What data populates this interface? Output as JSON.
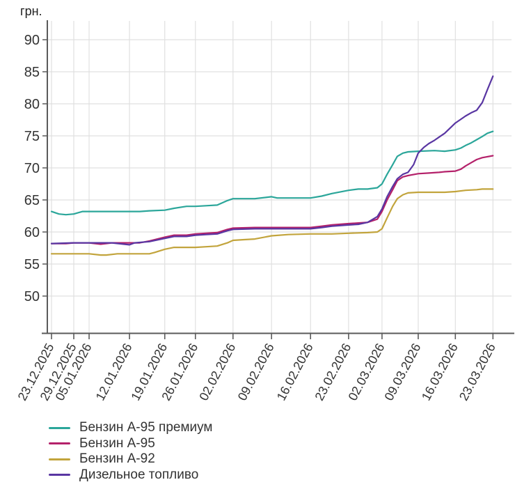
{
  "chart_data": {
    "type": "line",
    "unit_label": "грн.",
    "colors": {
      "grid": "#E0E0E0",
      "axis": "#5A5A5A",
      "tick_text": "#333333"
    },
    "y_axis": {
      "min": 50,
      "max": 90,
      "ticks": [
        90,
        85,
        80,
        75,
        70,
        65,
        60,
        55,
        50
      ],
      "grid": true
    },
    "x_axis": {
      "grid": true,
      "ticks": [
        {
          "label": "23.12.2025",
          "t": 0.009
        },
        {
          "label": "29.12.2025",
          "t": 0.057
        },
        {
          "label": "05.01.2026",
          "t": 0.09
        },
        {
          "label": "12.01.2026",
          "t": 0.177
        },
        {
          "label": "19.01.2026",
          "t": 0.253
        },
        {
          "label": "26.01.2026",
          "t": 0.319
        },
        {
          "label": "02.02.2026",
          "t": 0.4
        },
        {
          "label": "09.02.2026",
          "t": 0.483
        },
        {
          "label": "16.02.2026",
          "t": 0.567
        },
        {
          "label": "23.02.2026",
          "t": 0.649
        },
        {
          "label": "02.03.2026",
          "t": 0.721
        },
        {
          "label": "09.03.2026",
          "t": 0.799
        },
        {
          "label": "16.03.2026",
          "t": 0.879
        },
        {
          "label": "23.03.2026",
          "t": 0.96
        }
      ]
    },
    "legend": {
      "position": "bottom-left"
    },
    "series": [
      {
        "id": "a95-premium",
        "name": "Бензин А-95 премиум",
        "color": "#2BA69A",
        "points": [
          [
            "23.12.2025",
            0.009,
            63.2
          ],
          [
            "25.12.2025",
            0.025,
            62.8
          ],
          [
            "27.12.2025",
            0.04,
            62.7
          ],
          [
            "29.12.2025",
            0.057,
            62.8
          ],
          [
            "31.12.2025",
            0.066,
            63.0
          ],
          [
            "02.01.2026",
            0.076,
            63.2
          ],
          [
            "05.01.2026",
            0.09,
            63.2
          ],
          [
            "09.01.2026",
            0.139,
            63.2
          ],
          [
            "12.01.2026",
            0.177,
            63.2
          ],
          [
            "14.01.2026",
            0.199,
            63.2
          ],
          [
            "16.01.2026",
            0.22,
            63.3
          ],
          [
            "19.01.2026",
            0.253,
            63.4
          ],
          [
            "21.01.2026",
            0.273,
            63.7
          ],
          [
            "24.01.2026",
            0.3,
            64.0
          ],
          [
            "26.01.2026",
            0.319,
            64.0
          ],
          [
            "28.01.2026",
            0.342,
            64.1
          ],
          [
            "30.01.2026",
            0.366,
            64.2
          ],
          [
            "01.02.2026",
            0.388,
            64.9
          ],
          [
            "02.02.2026",
            0.4,
            65.2
          ],
          [
            "06.02.2026",
            0.447,
            65.2
          ],
          [
            "09.02.2026",
            0.483,
            65.5
          ],
          [
            "10.02.2026",
            0.495,
            65.3
          ],
          [
            "16.02.2026",
            0.567,
            65.3
          ],
          [
            "18.02.2026",
            0.591,
            65.6
          ],
          [
            "20.02.2026",
            0.613,
            66.0
          ],
          [
            "23.02.2026",
            0.649,
            66.5
          ],
          [
            "25.02.2026",
            0.67,
            66.7
          ],
          [
            "27.02.2026",
            0.69,
            66.7
          ],
          [
            "01.03.2026",
            0.711,
            66.9
          ],
          [
            "02.03.2026",
            0.721,
            67.5
          ],
          [
            "03.03.2026",
            0.732,
            69.0
          ],
          [
            "04.03.2026",
            0.744,
            70.5
          ],
          [
            "05.03.2026",
            0.754,
            71.8
          ],
          [
            "06.03.2026",
            0.766,
            72.3
          ],
          [
            "07.03.2026",
            0.777,
            72.5
          ],
          [
            "09.03.2026",
            0.799,
            72.6
          ],
          [
            "12.03.2026",
            0.834,
            72.7
          ],
          [
            "14.03.2026",
            0.856,
            72.6
          ],
          [
            "16.03.2026",
            0.879,
            72.8
          ],
          [
            "17.03.2026",
            0.891,
            73.1
          ],
          [
            "18.03.2026",
            0.901,
            73.5
          ],
          [
            "19.03.2026",
            0.913,
            73.9
          ],
          [
            "20.03.2026",
            0.925,
            74.4
          ],
          [
            "21.03.2026",
            0.937,
            74.9
          ],
          [
            "22.03.2026",
            0.948,
            75.4
          ],
          [
            "23.03.2026",
            0.96,
            75.7
          ]
        ]
      },
      {
        "id": "a95",
        "name": "Бензин А-95",
        "color": "#B4216A",
        "points": [
          [
            "23.12.2025",
            0.009,
            58.2
          ],
          [
            "27.12.2025",
            0.04,
            58.2
          ],
          [
            "29.12.2025",
            0.057,
            58.3
          ],
          [
            "05.01.2026",
            0.09,
            58.3
          ],
          [
            "07.01.2026",
            0.115,
            58.1
          ],
          [
            "09.01.2026",
            0.139,
            58.3
          ],
          [
            "12.01.2026",
            0.177,
            58.3
          ],
          [
            "14.01.2026",
            0.199,
            58.3
          ],
          [
            "16.01.2026",
            0.22,
            58.6
          ],
          [
            "19.01.2026",
            0.253,
            59.2
          ],
          [
            "21.01.2026",
            0.273,
            59.5
          ],
          [
            "24.01.2026",
            0.3,
            59.5
          ],
          [
            "26.01.2026",
            0.319,
            59.7
          ],
          [
            "28.01.2026",
            0.342,
            59.8
          ],
          [
            "30.01.2026",
            0.366,
            59.9
          ],
          [
            "01.02.2026",
            0.388,
            60.4
          ],
          [
            "02.02.2026",
            0.4,
            60.6
          ],
          [
            "06.02.2026",
            0.447,
            60.7
          ],
          [
            "12.02.2026",
            0.519,
            60.7
          ],
          [
            "16.02.2026",
            0.567,
            60.7
          ],
          [
            "18.02.2026",
            0.591,
            60.9
          ],
          [
            "20.02.2026",
            0.613,
            61.1
          ],
          [
            "23.02.2026",
            0.649,
            61.3
          ],
          [
            "25.02.2026",
            0.67,
            61.4
          ],
          [
            "27.02.2026",
            0.69,
            61.5
          ],
          [
            "01.03.2026",
            0.711,
            62.0
          ],
          [
            "02.03.2026",
            0.721,
            63.2
          ],
          [
            "03.03.2026",
            0.732,
            65.0
          ],
          [
            "04.03.2026",
            0.744,
            66.6
          ],
          [
            "05.03.2026",
            0.754,
            68.0
          ],
          [
            "06.03.2026",
            0.766,
            68.6
          ],
          [
            "07.03.2026",
            0.777,
            68.8
          ],
          [
            "09.03.2026",
            0.799,
            69.1
          ],
          [
            "11.03.2026",
            0.822,
            69.2
          ],
          [
            "13.03.2026",
            0.844,
            69.3
          ],
          [
            "14.03.2026",
            0.856,
            69.4
          ],
          [
            "16.03.2026",
            0.879,
            69.5
          ],
          [
            "17.03.2026",
            0.891,
            69.8
          ],
          [
            "18.03.2026",
            0.901,
            70.3
          ],
          [
            "19.03.2026",
            0.913,
            70.8
          ],
          [
            "20.03.2026",
            0.925,
            71.3
          ],
          [
            "21.03.2026",
            0.937,
            71.6
          ],
          [
            "23.03.2026",
            0.96,
            71.9
          ]
        ]
      },
      {
        "id": "a92",
        "name": "Бензин А-92",
        "color": "#C2A43C",
        "points": [
          [
            "23.12.2025",
            0.009,
            56.6
          ],
          [
            "29.12.2025",
            0.057,
            56.6
          ],
          [
            "05.01.2026",
            0.09,
            56.6
          ],
          [
            "07.01.2026",
            0.115,
            56.4
          ],
          [
            "08.01.2026",
            0.127,
            56.4
          ],
          [
            "10.01.2026",
            0.151,
            56.6
          ],
          [
            "12.01.2026",
            0.177,
            56.6
          ],
          [
            "16.01.2026",
            0.22,
            56.6
          ],
          [
            "17.01.2026",
            0.231,
            56.8
          ],
          [
            "19.01.2026",
            0.253,
            57.3
          ],
          [
            "21.01.2026",
            0.273,
            57.6
          ],
          [
            "26.01.2026",
            0.319,
            57.6
          ],
          [
            "28.01.2026",
            0.342,
            57.7
          ],
          [
            "30.01.2026",
            0.366,
            57.8
          ],
          [
            "01.02.2026",
            0.388,
            58.3
          ],
          [
            "02.02.2026",
            0.4,
            58.7
          ],
          [
            "04.02.2026",
            0.424,
            58.8
          ],
          [
            "06.02.2026",
            0.447,
            58.9
          ],
          [
            "09.02.2026",
            0.483,
            59.4
          ],
          [
            "12.02.2026",
            0.519,
            59.6
          ],
          [
            "16.02.2026",
            0.567,
            59.7
          ],
          [
            "20.02.2026",
            0.613,
            59.7
          ],
          [
            "23.02.2026",
            0.649,
            59.8
          ],
          [
            "27.02.2026",
            0.69,
            59.9
          ],
          [
            "01.03.2026",
            0.711,
            60.0
          ],
          [
            "02.03.2026",
            0.721,
            60.5
          ],
          [
            "03.03.2026",
            0.732,
            62.2
          ],
          [
            "04.03.2026",
            0.744,
            64.0
          ],
          [
            "05.03.2026",
            0.754,
            65.2
          ],
          [
            "06.03.2026",
            0.766,
            65.8
          ],
          [
            "07.03.2026",
            0.777,
            66.1
          ],
          [
            "09.03.2026",
            0.799,
            66.2
          ],
          [
            "12.03.2026",
            0.834,
            66.2
          ],
          [
            "14.03.2026",
            0.856,
            66.2
          ],
          [
            "16.03.2026",
            0.879,
            66.3
          ],
          [
            "18.03.2026",
            0.901,
            66.5
          ],
          [
            "20.03.2026",
            0.925,
            66.6
          ],
          [
            "21.03.2026",
            0.937,
            66.7
          ],
          [
            "23.03.2026",
            0.96,
            66.7
          ]
        ]
      },
      {
        "id": "diesel",
        "name": "Дизельное топливо",
        "color": "#5936A2",
        "points": [
          [
            "23.12.2025",
            0.009,
            58.2
          ],
          [
            "29.12.2025",
            0.057,
            58.3
          ],
          [
            "05.01.2026",
            0.09,
            58.3
          ],
          [
            "09.01.2026",
            0.139,
            58.3
          ],
          [
            "12.01.2026",
            0.177,
            58.0
          ],
          [
            "13.01.2026",
            0.188,
            58.3
          ],
          [
            "16.01.2026",
            0.22,
            58.5
          ],
          [
            "19.01.2026",
            0.253,
            59.0
          ],
          [
            "21.01.2026",
            0.273,
            59.3
          ],
          [
            "24.01.2026",
            0.3,
            59.3
          ],
          [
            "26.01.2026",
            0.319,
            59.5
          ],
          [
            "28.01.2026",
            0.342,
            59.6
          ],
          [
            "30.01.2026",
            0.366,
            59.7
          ],
          [
            "01.02.2026",
            0.388,
            60.2
          ],
          [
            "02.02.2026",
            0.4,
            60.4
          ],
          [
            "06.02.2026",
            0.447,
            60.5
          ],
          [
            "12.02.2026",
            0.519,
            60.5
          ],
          [
            "16.02.2026",
            0.567,
            60.5
          ],
          [
            "18.02.2026",
            0.591,
            60.7
          ],
          [
            "20.02.2026",
            0.613,
            60.9
          ],
          [
            "23.02.2026",
            0.649,
            61.1
          ],
          [
            "25.02.2026",
            0.67,
            61.2
          ],
          [
            "27.02.2026",
            0.69,
            61.5
          ],
          [
            "01.03.2026",
            0.711,
            62.4
          ],
          [
            "02.03.2026",
            0.721,
            63.6
          ],
          [
            "03.03.2026",
            0.732,
            65.5
          ],
          [
            "04.03.2026",
            0.744,
            67.1
          ],
          [
            "05.03.2026",
            0.754,
            68.3
          ],
          [
            "06.03.2026",
            0.766,
            69.0
          ],
          [
            "07.03.2026",
            0.777,
            69.3
          ],
          [
            "08.03.2026",
            0.789,
            70.5
          ],
          [
            "09.03.2026",
            0.799,
            72.3
          ],
          [
            "10.03.2026",
            0.811,
            73.2
          ],
          [
            "11.03.2026",
            0.822,
            73.8
          ],
          [
            "12.03.2026",
            0.834,
            74.3
          ],
          [
            "13.03.2026",
            0.844,
            74.8
          ],
          [
            "14.03.2026",
            0.856,
            75.4
          ],
          [
            "16.03.2026",
            0.879,
            77.0
          ],
          [
            "17.03.2026",
            0.891,
            77.6
          ],
          [
            "18.03.2026",
            0.901,
            78.1
          ],
          [
            "19.03.2026",
            0.913,
            78.6
          ],
          [
            "20.03.2026",
            0.925,
            79.0
          ],
          [
            "21.03.2026",
            0.937,
            80.2
          ],
          [
            "22.03.2026",
            0.948,
            82.2
          ],
          [
            "23.03.2026",
            0.96,
            84.3
          ]
        ]
      }
    ]
  }
}
